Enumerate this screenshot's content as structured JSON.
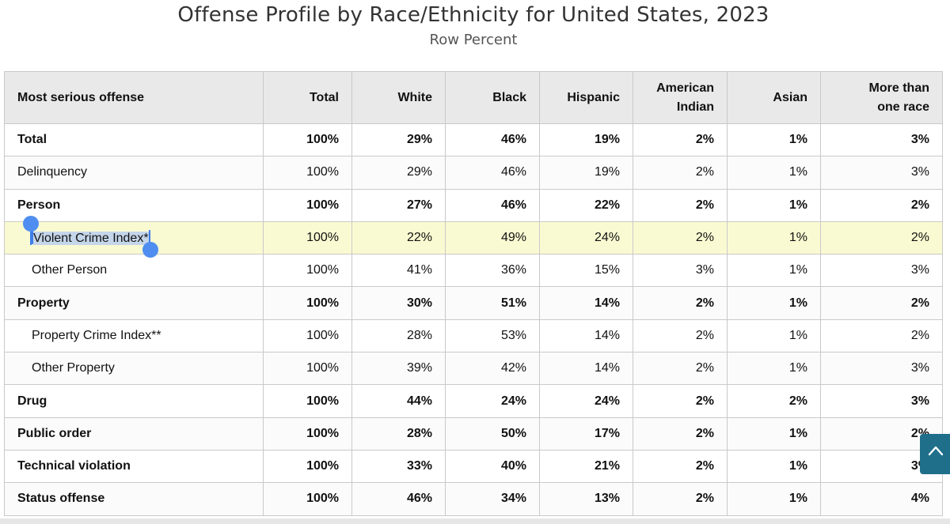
{
  "title": "Offense Profile by Race/Ethnicity for United States, 2023",
  "subtitle": "Row Percent",
  "table": {
    "headers": {
      "offense": "Most serious offense",
      "total": "Total",
      "white": "White",
      "black": "Black",
      "hispanic": "Hispanic",
      "american_indian_1": "American",
      "american_indian_2": "Indian",
      "asian": "Asian",
      "more_than_1": "More than",
      "more_than_2": "one race"
    },
    "rows": [
      {
        "label": "Total",
        "total": "100%",
        "white": "29%",
        "black": "46%",
        "hispanic": "19%",
        "american_indian": "2%",
        "asian": "1%",
        "more_than_one": "3%"
      },
      {
        "label": "Delinquency",
        "total": "100%",
        "white": "29%",
        "black": "46%",
        "hispanic": "19%",
        "american_indian": "2%",
        "asian": "1%",
        "more_than_one": "3%"
      },
      {
        "label": "Person",
        "total": "100%",
        "white": "27%",
        "black": "46%",
        "hispanic": "22%",
        "american_indian": "2%",
        "asian": "1%",
        "more_than_one": "2%"
      },
      {
        "label": "Violent Crime Index*",
        "total": "100%",
        "white": "22%",
        "black": "49%",
        "hispanic": "24%",
        "american_indian": "2%",
        "asian": "1%",
        "more_than_one": "2%"
      },
      {
        "label": "Other Person",
        "total": "100%",
        "white": "41%",
        "black": "36%",
        "hispanic": "15%",
        "american_indian": "3%",
        "asian": "1%",
        "more_than_one": "3%"
      },
      {
        "label": "Property",
        "total": "100%",
        "white": "30%",
        "black": "51%",
        "hispanic": "14%",
        "american_indian": "2%",
        "asian": "1%",
        "more_than_one": "2%"
      },
      {
        "label": "Property Crime Index**",
        "total": "100%",
        "white": "28%",
        "black": "53%",
        "hispanic": "14%",
        "american_indian": "2%",
        "asian": "1%",
        "more_than_one": "2%"
      },
      {
        "label": "Other Property",
        "total": "100%",
        "white": "39%",
        "black": "42%",
        "hispanic": "14%",
        "american_indian": "2%",
        "asian": "1%",
        "more_than_one": "3%"
      },
      {
        "label": "Drug",
        "total": "100%",
        "white": "44%",
        "black": "24%",
        "hispanic": "24%",
        "american_indian": "2%",
        "asian": "2%",
        "more_than_one": "3%"
      },
      {
        "label": "Public order",
        "total": "100%",
        "white": "28%",
        "black": "50%",
        "hispanic": "17%",
        "american_indian": "2%",
        "asian": "1%",
        "more_than_one": "2%"
      },
      {
        "label": "Technical violation",
        "total": "100%",
        "white": "33%",
        "black": "40%",
        "hispanic": "21%",
        "american_indian": "2%",
        "asian": "1%",
        "more_than_one": "3%"
      },
      {
        "label": "Status offense",
        "total": "100%",
        "white": "46%",
        "black": "34%",
        "hispanic": "13%",
        "american_indian": "2%",
        "asian": "1%",
        "more_than_one": "4%"
      }
    ]
  },
  "colors": {
    "header_bg": "#e9e9e9",
    "highlight_row": "#fafad2",
    "selection": "#c5d6ea",
    "selection_handle": "#4f8ef0",
    "scroll_button": "#1f6f8b"
  },
  "icons": {
    "scroll_top": "chevron-up-icon"
  }
}
